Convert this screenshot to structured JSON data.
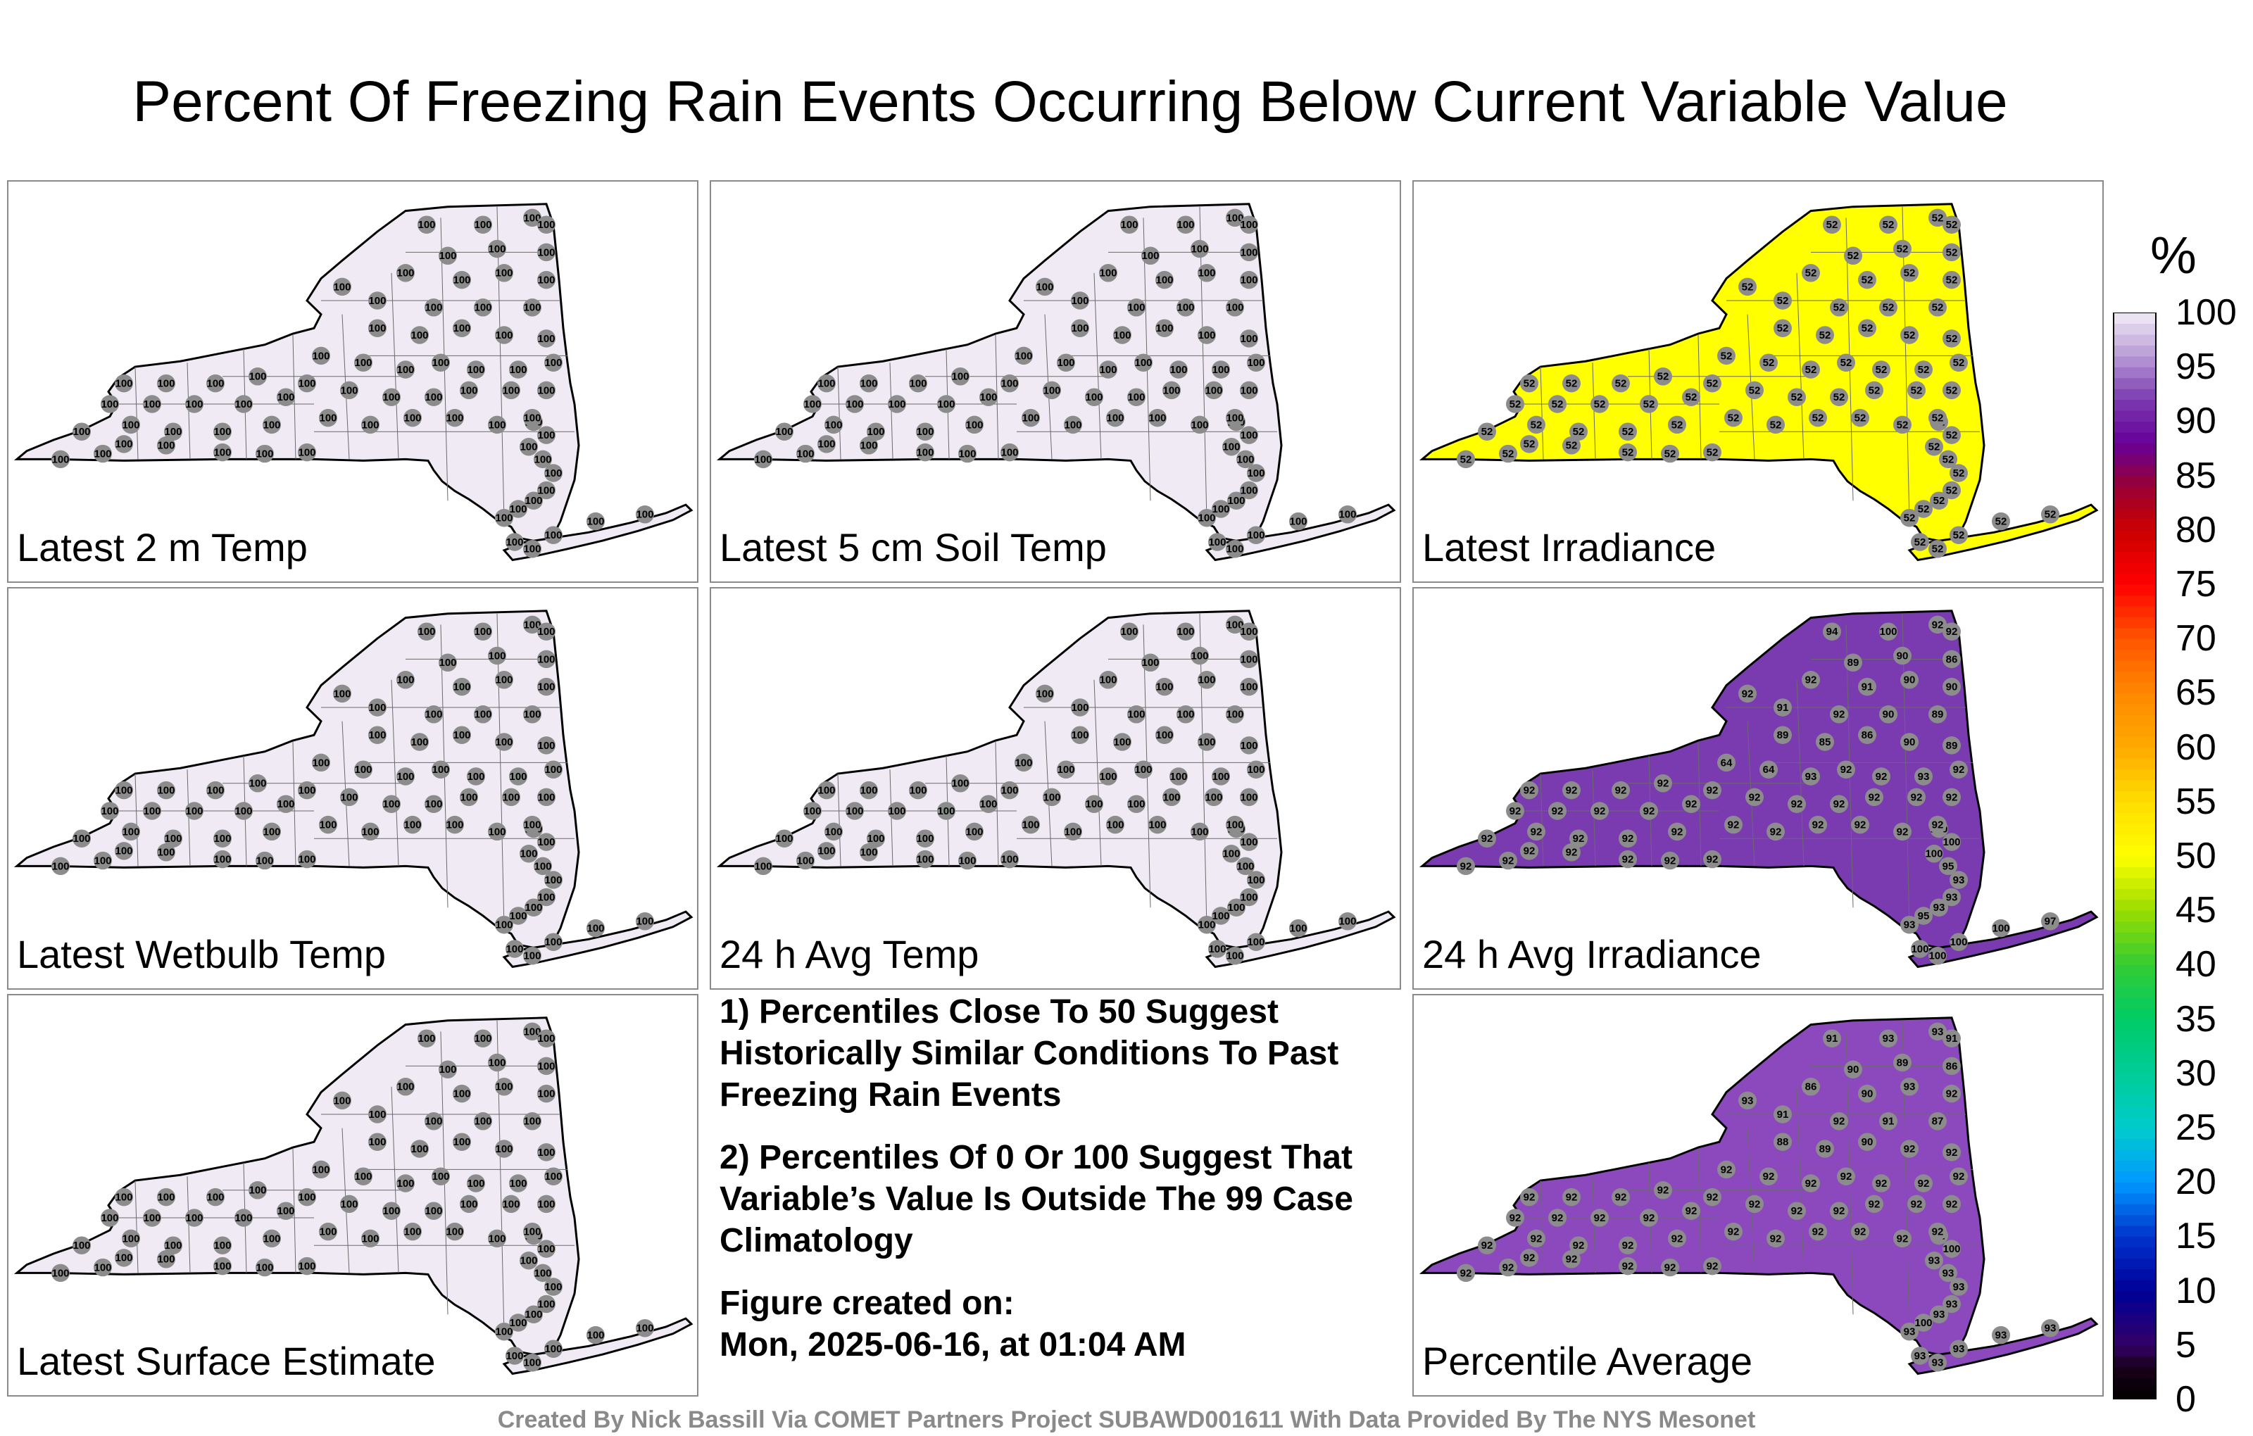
{
  "title": "Percent Of Freezing Rain Events Occurring Below Current Variable Value",
  "panels": [
    {
      "label": "Latest 2 m Temp",
      "fill": "#efeaf4",
      "stations": "100",
      "overrides": {}
    },
    {
      "label": "Latest 5 cm Soil Temp",
      "fill": "#efeaf4",
      "stations": "100",
      "overrides": {}
    },
    {
      "label": "Latest Irradiance",
      "fill": "#ffff00",
      "stations": "52",
      "overrides": {}
    },
    {
      "label": "Latest Wetbulb Temp",
      "fill": "#efeaf4",
      "stations": "100",
      "overrides": {}
    },
    {
      "label": "24 h Avg Temp",
      "fill": "#efeaf4",
      "stations": "100",
      "overrides": {}
    },
    {
      "label": "24 h Avg Irradiance",
      "fill": "#7b3bb0",
      "stations": "92",
      "overrides": {
        "0": "100",
        "1": "100",
        "2": "100",
        "3": "100",
        "4": "97",
        "5": "93",
        "6": "95",
        "7": "93",
        "8": "93",
        "9": "93",
        "10": "95",
        "11": "100",
        "12": "100",
        "13": "100",
        "14": "94",
        "15": "100",
        "16": "92",
        "17": "92",
        "18": "89",
        "19": "90",
        "20": "86",
        "21": "92",
        "22": "91",
        "23": "90",
        "24": "90",
        "25": "92",
        "26": "91",
        "27": "92",
        "28": "90",
        "29": "89",
        "30": "89",
        "31": "85",
        "32": "86",
        "33": "90",
        "34": "89",
        "35": "64",
        "36": "64",
        "37": "93",
        "38": "92",
        "39": "92",
        "40": "93"
      }
    },
    {
      "label": "Latest Surface Estimate",
      "fill": "#efeaf4",
      "stations": "100",
      "overrides": {}
    },
    {
      "label": "Percentile Average",
      "fill": "#8b49bd",
      "stations": "92",
      "overrides": {
        "0": "93",
        "1": "93",
        "2": "93",
        "3": "93",
        "4": "93",
        "5": "93",
        "6": "100",
        "7": "93",
        "8": "93",
        "9": "93",
        "10": "93",
        "11": "93",
        "12": "100",
        "13": "91",
        "14": "91",
        "15": "93",
        "16": "93",
        "17": "91",
        "18": "90",
        "19": "89",
        "20": "86",
        "21": "86",
        "22": "90",
        "23": "93",
        "24": "92",
        "25": "93",
        "26": "91",
        "27": "92",
        "28": "91",
        "29": "87",
        "30": "88",
        "31": "89",
        "32": "90",
        "33": "92",
        "34": "92"
      }
    }
  ],
  "notes": [
    "1) Percentiles Close To 50 Suggest Historically Similar Conditions To Past Freezing Rain Events",
    "2) Percentiles Of 0 Or 100 Suggest That Variable’s Value Is Outside The 99 Case Climatology",
    "Figure created on:",
    "Mon, 2025-06-16, at 01:04 AM"
  ],
  "colorbar": {
    "unit": "%",
    "ticks": [
      "0",
      "5",
      "10",
      "15",
      "20",
      "25",
      "30",
      "35",
      "40",
      "45",
      "50",
      "55",
      "60",
      "65",
      "70",
      "75",
      "80",
      "85",
      "90",
      "95",
      "100"
    ]
  },
  "footer": "Created By Nick Bassill Via COMET Partners Project SUBAWD001611 With Data Provided By The NYS Mesonet"
}
